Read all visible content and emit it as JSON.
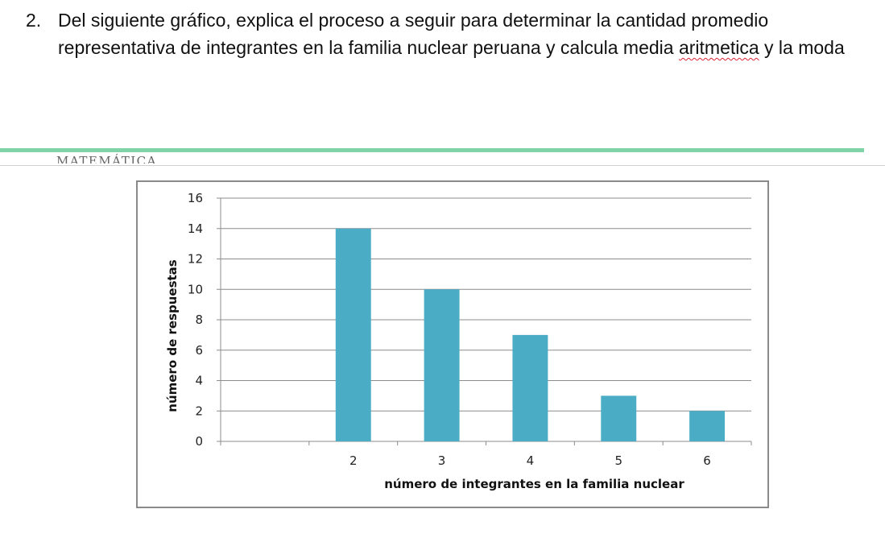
{
  "question": {
    "number": "2.",
    "text_part1": "Del siguiente gráfico, explica el proceso a seguir para determinar la cantidad promedio representativa de integrantes en la familia nuclear peruana y calcula media ",
    "misspelled_word": "aritmetica",
    "text_part2": " y la moda"
  },
  "clipped_header_text": "MATEMÁTICA",
  "colors": {
    "bar": "#4bacc6",
    "grid": "#8c8c8c",
    "accent_rule": "#7fd3a6"
  },
  "chart_data": {
    "type": "bar",
    "categories": [
      "",
      "2",
      "3",
      "4",
      "5",
      "6"
    ],
    "values": [
      0,
      14,
      10,
      7,
      3,
      2
    ],
    "xlabel": "número de integrantes en la familia nuclear",
    "ylabel": "número de respuestas",
    "ylim": [
      0,
      16
    ],
    "yticks": [
      "0",
      "2",
      "4",
      "6",
      "8",
      "10",
      "12",
      "14",
      "16"
    ],
    "grid": true,
    "legend": "none"
  }
}
